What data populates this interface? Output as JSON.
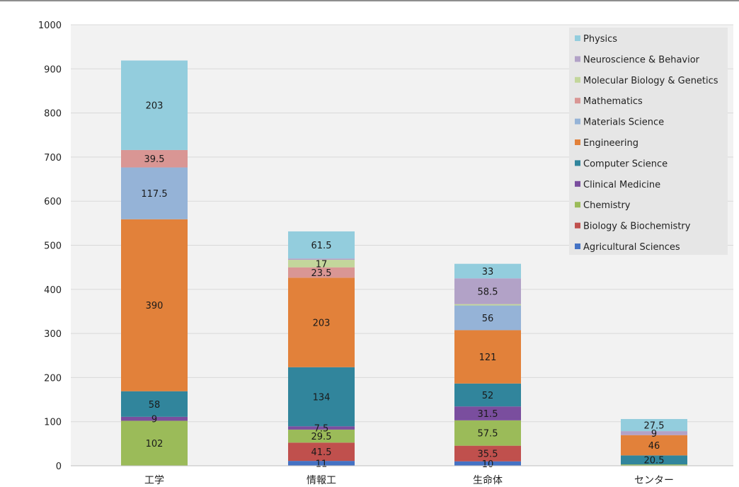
{
  "chart_data": {
    "type": "bar",
    "stacked": true,
    "categories": [
      "工学",
      "情報工",
      "生命体",
      "センター"
    ],
    "ylim": [
      0,
      1000
    ],
    "yticks": [
      0,
      100,
      200,
      300,
      400,
      500,
      600,
      700,
      800,
      900,
      1000
    ],
    "grid": true,
    "legend_position": "top-right",
    "series": [
      {
        "name": "Agricultural Sciences",
        "color": "#4472c4",
        "values": [
          0,
          11,
          10,
          0
        ],
        "labels": [
          "",
          "11",
          "10",
          ""
        ]
      },
      {
        "name": "Biology & Biochemistry",
        "color": "#c0504d",
        "values": [
          0,
          41.5,
          35.5,
          0
        ],
        "labels": [
          "",
          "41.5",
          "35.5",
          ""
        ]
      },
      {
        "name": "Chemistry",
        "color": "#9bbb59",
        "values": [
          102,
          29.5,
          57.5,
          3
        ],
        "labels": [
          "102",
          "29.5",
          "57.5",
          ""
        ]
      },
      {
        "name": "Clinical Medicine",
        "color": "#7a4e9e",
        "values": [
          9,
          7.5,
          31.5,
          0
        ],
        "labels": [
          "9",
          "7.5",
          "31.5",
          ""
        ]
      },
      {
        "name": "Computer Science",
        "color": "#31859c",
        "values": [
          58,
          134,
          52,
          20.5
        ],
        "labels": [
          "58",
          "134",
          "52",
          "20.5"
        ]
      },
      {
        "name": "Engineering",
        "color": "#e2813a",
        "values": [
          390,
          203,
          121,
          46
        ],
        "labels": [
          "390",
          "203",
          "121",
          "46"
        ]
      },
      {
        "name": "Materials Science",
        "color": "#95b3d7",
        "values": [
          117.5,
          0,
          56,
          0
        ],
        "labels": [
          "117.5",
          "",
          "56",
          ""
        ]
      },
      {
        "name": "Mathematics",
        "color": "#d99694",
        "values": [
          39.5,
          23.5,
          0,
          0
        ],
        "labels": [
          "39.5",
          "23.5",
          "",
          ""
        ]
      },
      {
        "name": "Molecular Biology & Genetics",
        "color": "#c3d69b",
        "values": [
          0,
          17,
          3,
          0
        ],
        "labels": [
          "",
          "17",
          "",
          ""
        ]
      },
      {
        "name": "Neuroscience & Behavior",
        "color": "#b2a2c7",
        "values": [
          0,
          3,
          58.5,
          9
        ],
        "labels": [
          "",
          "",
          "58.5",
          "9"
        ]
      },
      {
        "name": "Physics",
        "color": "#93cddd",
        "values": [
          203,
          61.5,
          33,
          27.5
        ],
        "labels": [
          "203",
          "61.5",
          "33",
          "27.5"
        ]
      }
    ]
  }
}
